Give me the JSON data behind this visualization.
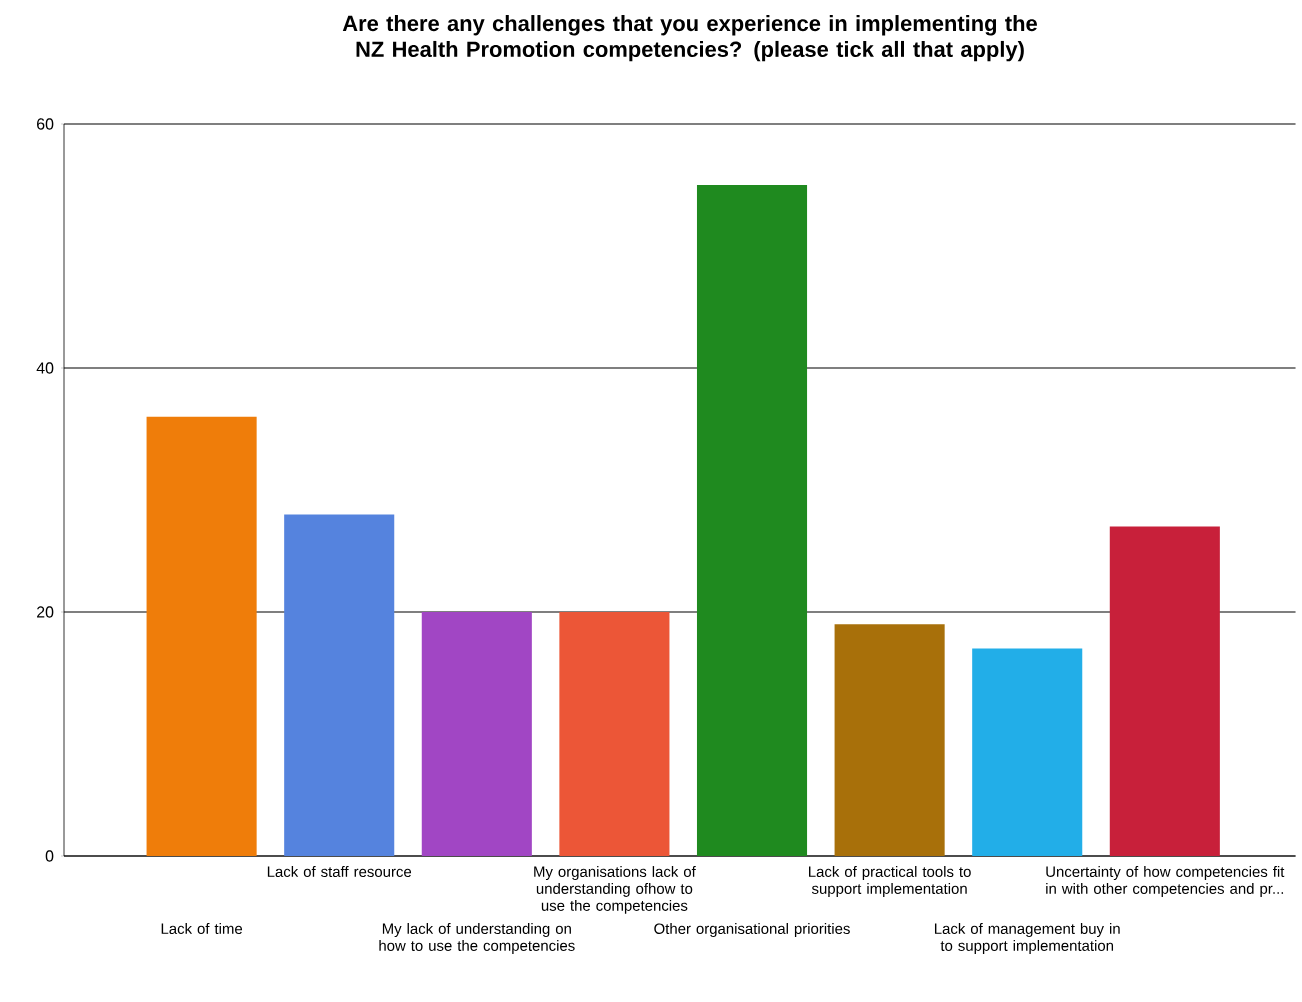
{
  "chart_data": {
    "type": "bar",
    "title": "Are there any challenges that you experience in implementing the NZ Health Promotion competencies? (please tick all that apply)",
    "categories": [
      "Lack of time",
      "Lack of staff resource",
      "My lack of understanding on how to use the competencies",
      "My organisations lack of understanding ofhow to use the competencies",
      "Other organisational priorities",
      "Lack of practical tools to support implementation",
      "Lack of management buy in to support implementation",
      "Uncertainty of how competencies fit in with other competencies and pr..."
    ],
    "values": [
      36,
      28,
      20,
      20,
      55,
      19,
      17,
      27
    ],
    "colors": [
      "#ef7d0a",
      "#5583de",
      "#a146c4",
      "#ec5637",
      "#1f8a1f",
      "#a8700a",
      "#22aee8",
      "#c8203a"
    ],
    "ylim": [
      0,
      60
    ],
    "yticks": [
      0,
      20,
      40,
      60
    ],
    "grid": "y"
  }
}
